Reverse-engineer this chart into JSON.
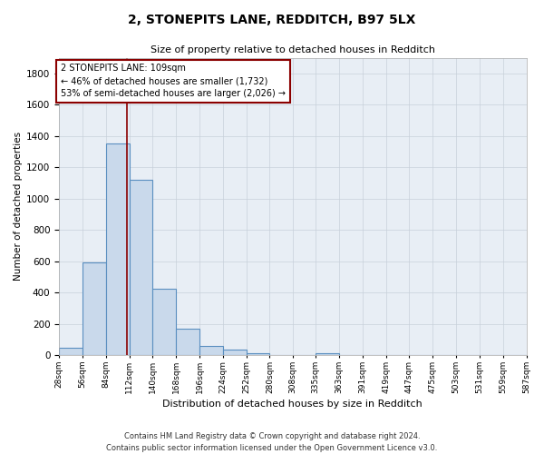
{
  "title": "2, STONEPITS LANE, REDDITCH, B97 5LX",
  "subtitle": "Size of property relative to detached houses in Redditch",
  "xlabel": "Distribution of detached houses by size in Redditch",
  "ylabel": "Number of detached properties",
  "bar_left_edges": [
    28,
    56,
    84,
    112,
    140,
    168,
    196,
    224,
    252,
    280,
    308,
    335,
    363,
    391,
    419,
    447,
    475,
    503,
    531,
    559
  ],
  "bar_heights": [
    50,
    595,
    1350,
    1120,
    425,
    170,
    60,
    38,
    15,
    0,
    0,
    15,
    0,
    0,
    0,
    0,
    0,
    0,
    0,
    0
  ],
  "bin_width": 28,
  "bar_color": "#c9d9eb",
  "bar_edge_color": "#5a8fc0",
  "property_line_x": 109,
  "property_line_color": "#8b0000",
  "annotation_line1": "2 STONEPITS LANE: 109sqm",
  "annotation_line2": "← 46% of detached houses are smaller (1,732)",
  "annotation_line3": "53% of semi-detached houses are larger (2,026) →",
  "annotation_box_color": "#8b0000",
  "ylim": [
    0,
    1900
  ],
  "yticks": [
    0,
    200,
    400,
    600,
    800,
    1000,
    1200,
    1400,
    1600,
    1800
  ],
  "xtick_labels": [
    "28sqm",
    "56sqm",
    "84sqm",
    "112sqm",
    "140sqm",
    "168sqm",
    "196sqm",
    "224sqm",
    "252sqm",
    "280sqm",
    "308sqm",
    "335sqm",
    "363sqm",
    "391sqm",
    "419sqm",
    "447sqm",
    "475sqm",
    "503sqm",
    "531sqm",
    "559sqm",
    "587sqm"
  ],
  "grid_color": "#c8d0da",
  "bg_color": "#e8eef5",
  "footnote1": "Contains HM Land Registry data © Crown copyright and database right 2024.",
  "footnote2": "Contains public sector information licensed under the Open Government Licence v3.0."
}
